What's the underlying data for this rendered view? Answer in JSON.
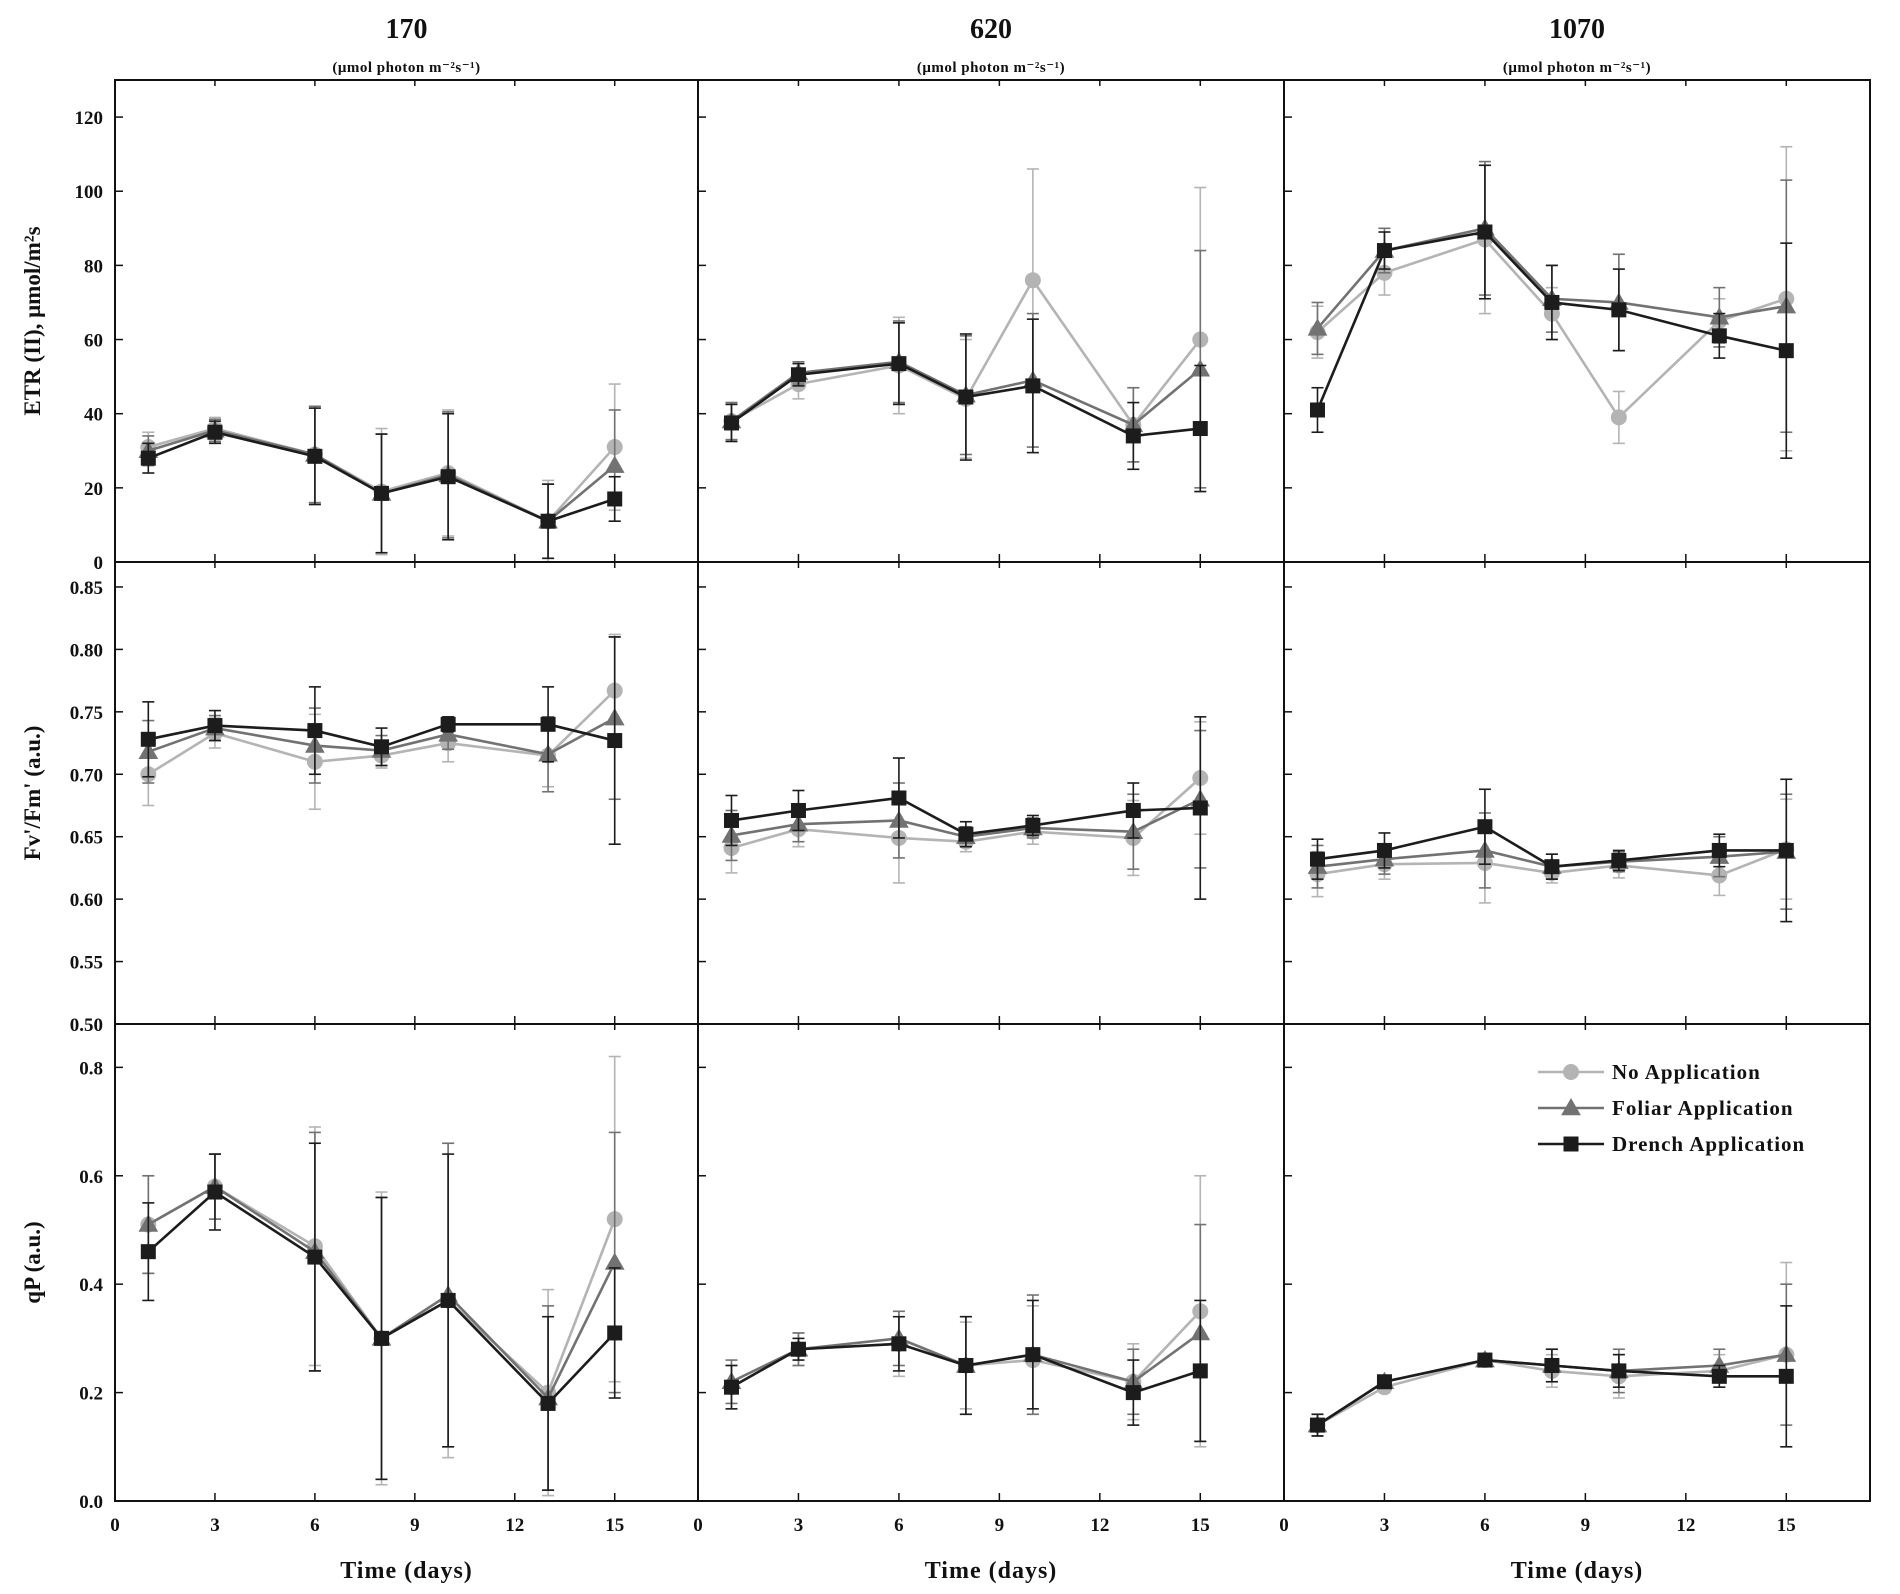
{
  "chart_data": {
    "type": "line",
    "layout": "3x3 panel grid",
    "x": [
      1,
      3,
      6,
      8,
      10,
      13,
      15
    ],
    "xticks": [
      "0",
      "3",
      "6",
      "9",
      "12",
      "15"
    ],
    "xlim": [
      0,
      17.5
    ],
    "xlabel": "Time (days)",
    "columns": [
      {
        "title": "170",
        "unit": "(μmol photon m⁻²s⁻¹)"
      },
      {
        "title": "620",
        "unit": "(μmol photon m⁻²s⁻¹)"
      },
      {
        "title": "1070",
        "unit": "(μmol photon m⁻²s⁻¹)"
      }
    ],
    "rows": [
      {
        "ylabel": "ETR (II), μmol/m²s",
        "ylim": [
          0,
          130
        ],
        "yticks": [
          0,
          20,
          40,
          60,
          80,
          100,
          120
        ]
      },
      {
        "ylabel": "Fv'/Fm' (a.u.)",
        "ylim": [
          0.5,
          0.87
        ],
        "yticks": [
          0.5,
          0.55,
          0.6,
          0.65,
          0.7,
          0.75,
          0.8,
          0.85
        ]
      },
      {
        "ylabel": "qP (a.u.)",
        "ylim": [
          0,
          0.88
        ],
        "yticks": [
          0,
          0.2,
          0.4,
          0.6,
          0.8
        ]
      }
    ],
    "legend": {
      "position": "top-right of bottom-right panel",
      "entries": [
        "No Application",
        "Foliar Application",
        "Drench Application"
      ]
    },
    "series_styles": [
      {
        "name": "No Application",
        "color": "#b4b4b4",
        "marker": "circle"
      },
      {
        "name": "Foliar Application",
        "color": "#727272",
        "marker": "triangle"
      },
      {
        "name": "Drench Application",
        "color": "#1c1c1c",
        "marker": "square"
      }
    ],
    "panels": [
      {
        "row": 0,
        "col": 0,
        "series": [
          {
            "name": "No Application",
            "values": [
              31,
              36,
              29,
              19,
              24,
              11,
              31
            ],
            "errors": [
              4,
              3,
              13,
              17,
              17,
              11,
              17
            ]
          },
          {
            "name": "Foliar Application",
            "values": [
              30,
              35.5,
              29,
              18.5,
              23.5,
              11,
              26
            ],
            "errors": [
              4,
              3,
              13,
              16,
              17,
              10,
              15
            ]
          },
          {
            "name": "Drench Application",
            "values": [
              28,
              35,
              28.5,
              18.5,
              23,
              11,
              17
            ],
            "errors": [
              4,
              3,
              13,
              16,
              17,
              10,
              6
            ]
          }
        ]
      },
      {
        "row": 0,
        "col": 1,
        "series": [
          {
            "name": "No Application",
            "values": [
              38,
              48,
              53,
              44,
              76,
              37,
              60
            ],
            "errors": [
              5,
              4,
              13,
              16,
              30,
              10,
              41
            ]
          },
          {
            "name": "Foliar Application",
            "values": [
              38,
              51,
              54,
              45,
              49,
              37,
              52
            ],
            "errors": [
              5,
              3,
              11,
              16,
              18,
              10,
              32
            ]
          },
          {
            "name": "Drench Application",
            "values": [
              37.5,
              50.5,
              53.5,
              44.5,
              47.5,
              34,
              36
            ],
            "errors": [
              5,
              3,
              11,
              17,
              18,
              9,
              17
            ]
          }
        ]
      },
      {
        "row": 0,
        "col": 2,
        "series": [
          {
            "name": "No Application",
            "values": [
              62,
              78,
              87,
              67,
              39,
              65,
              71
            ],
            "errors": [
              7,
              6,
              20,
              7,
              7,
              6,
              41
            ]
          },
          {
            "name": "Foliar Application",
            "values": [
              63,
              84,
              90,
              71,
              70,
              66,
              69
            ],
            "errors": [
              7,
              6,
              18,
              9,
              13,
              8,
              34
            ]
          },
          {
            "name": "Drench Application",
            "values": [
              41,
              84,
              89,
              70,
              68,
              61,
              57
            ],
            "errors": [
              6,
              5,
              18,
              10,
              11,
              6,
              29
            ]
          }
        ]
      },
      {
        "row": 1,
        "col": 0,
        "series": [
          {
            "name": "No Application",
            "values": [
              0.7,
              0.733,
              0.71,
              0.715,
              0.725,
              0.715,
              0.767
            ],
            "errors": [
              0.025,
              0.012,
              0.038,
              0.01,
              0.015,
              0.025,
              0.045
            ]
          },
          {
            "name": "Foliar Application",
            "values": [
              0.718,
              0.737,
              0.723,
              0.719,
              0.732,
              0.716,
              0.745
            ],
            "errors": [
              0.025,
              0.01,
              0.03,
              0.012,
              0.012,
              0.03,
              0.065
            ]
          },
          {
            "name": "Drench Application",
            "values": [
              0.728,
              0.739,
              0.735,
              0.722,
              0.74,
              0.74,
              0.727
            ],
            "errors": [
              0.03,
              0.012,
              0.035,
              0.015,
              0.006,
              0.03,
              0.083
            ]
          }
        ]
      },
      {
        "row": 1,
        "col": 1,
        "series": [
          {
            "name": "No Application",
            "values": [
              0.641,
              0.656,
              0.649,
              0.646,
              0.654,
              0.649,
              0.697
            ],
            "errors": [
              0.02,
              0.014,
              0.036,
              0.008,
              0.01,
              0.03,
              0.045
            ]
          },
          {
            "name": "Foliar Application",
            "values": [
              0.651,
              0.66,
              0.663,
              0.65,
              0.657,
              0.654,
              0.68
            ],
            "errors": [
              0.02,
              0.014,
              0.03,
              0.008,
              0.008,
              0.03,
              0.055
            ]
          },
          {
            "name": "Drench Application",
            "values": [
              0.663,
              0.671,
              0.681,
              0.652,
              0.659,
              0.671,
              0.673
            ],
            "errors": [
              0.02,
              0.016,
              0.032,
              0.01,
              0.008,
              0.022,
              0.073
            ]
          }
        ]
      },
      {
        "row": 1,
        "col": 2,
        "series": [
          {
            "name": "No Application",
            "values": [
              0.62,
              0.628,
              0.629,
              0.621,
              0.627,
              0.619,
              0.64
            ],
            "errors": [
              0.018,
              0.012,
              0.032,
              0.008,
              0.01,
              0.016,
              0.04
            ]
          },
          {
            "name": "Foliar Application",
            "values": [
              0.626,
              0.632,
              0.639,
              0.626,
              0.63,
              0.634,
              0.638
            ],
            "errors": [
              0.017,
              0.012,
              0.03,
              0.01,
              0.008,
              0.016,
              0.046
            ]
          },
          {
            "name": "Drench Application",
            "values": [
              0.632,
              0.639,
              0.658,
              0.626,
              0.631,
              0.639,
              0.639
            ],
            "errors": [
              0.016,
              0.014,
              0.03,
              0.01,
              0.008,
              0.013,
              0.057
            ]
          }
        ]
      },
      {
        "row": 2,
        "col": 0,
        "series": [
          {
            "name": "No Application",
            "values": [
              0.51,
              0.58,
              0.47,
              0.3,
              0.37,
              0.2,
              0.52
            ],
            "errors": [
              0.09,
              0.06,
              0.22,
              0.27,
              0.29,
              0.19,
              0.3
            ]
          },
          {
            "name": "Foliar Application",
            "values": [
              0.51,
              0.58,
              0.46,
              0.3,
              0.38,
              0.19,
              0.44
            ],
            "errors": [
              0.09,
              0.06,
              0.22,
              0.26,
              0.28,
              0.17,
              0.24
            ]
          },
          {
            "name": "Drench Application",
            "values": [
              0.46,
              0.57,
              0.45,
              0.3,
              0.37,
              0.18,
              0.31
            ],
            "errors": [
              0.09,
              0.07,
              0.21,
              0.26,
              0.27,
              0.16,
              0.12
            ]
          }
        ]
      },
      {
        "row": 2,
        "col": 1,
        "series": [
          {
            "name": "No Application",
            "values": [
              0.21,
              0.28,
              0.29,
              0.25,
              0.26,
              0.22,
              0.35
            ],
            "errors": [
              0.04,
              0.03,
              0.06,
              0.08,
              0.1,
              0.07,
              0.25
            ]
          },
          {
            "name": "Foliar Application",
            "values": [
              0.22,
              0.28,
              0.3,
              0.25,
              0.27,
              0.22,
              0.31
            ],
            "errors": [
              0.04,
              0.03,
              0.05,
              0.09,
              0.11,
              0.06,
              0.2
            ]
          },
          {
            "name": "Drench Application",
            "values": [
              0.21,
              0.28,
              0.29,
              0.25,
              0.27,
              0.2,
              0.24
            ],
            "errors": [
              0.04,
              0.02,
              0.05,
              0.09,
              0.1,
              0.06,
              0.13
            ]
          }
        ]
      },
      {
        "row": 2,
        "col": 2,
        "series": [
          {
            "name": "No Application",
            "values": [
              0.14,
              0.21,
              0.26,
              0.24,
              0.23,
              0.24,
              0.27
            ],
            "errors": [
              0.02,
              0.01,
              0.01,
              0.03,
              0.04,
              0.03,
              0.17
            ]
          },
          {
            "name": "Foliar Application",
            "values": [
              0.14,
              0.22,
              0.26,
              0.25,
              0.24,
              0.25,
              0.27
            ],
            "errors": [
              0.02,
              0.01,
              0.01,
              0.03,
              0.04,
              0.03,
              0.13
            ]
          },
          {
            "name": "Drench Application",
            "values": [
              0.14,
              0.22,
              0.26,
              0.25,
              0.24,
              0.23,
              0.23
            ],
            "errors": [
              0.02,
              0.01,
              0.01,
              0.03,
              0.03,
              0.02,
              0.13
            ]
          }
        ]
      }
    ]
  }
}
